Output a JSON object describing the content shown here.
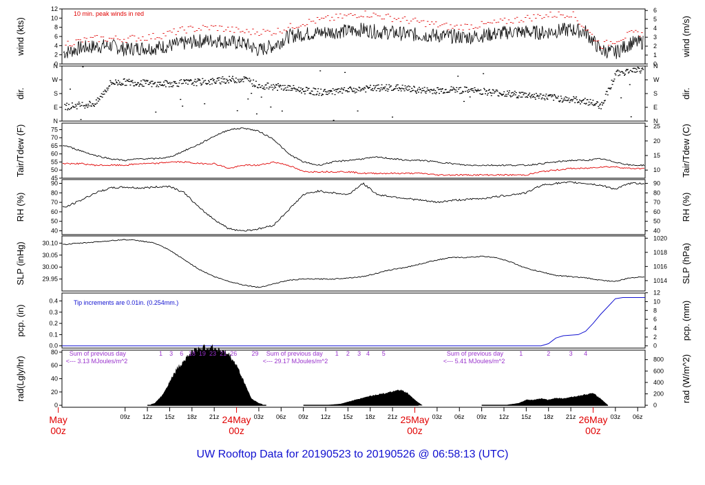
{
  "title": "UW Rooftop Data for 20190523  to  20190526 @ 06:58:13  (UTC)",
  "day_labels": [
    {
      "name": "May",
      "sub": "00z",
      "t": 0
    },
    {
      "name": "24May",
      "sub": "00z",
      "t": 24
    },
    {
      "name": "25May",
      "sub": "00z",
      "t": 48
    },
    {
      "name": "26May",
      "sub": "00z",
      "t": 72
    }
  ],
  "hour_ticks": [
    "09z",
    "12z",
    "15z",
    "18z",
    "21z",
    "03z",
    "06z",
    "09z",
    "12z",
    "15z",
    "18z",
    "21z",
    "03z",
    "06z",
    "09z",
    "12z",
    "15z",
    "18z",
    "21z",
    "03z",
    "06z"
  ],
  "hour_tick_times": [
    9,
    12,
    15,
    18,
    21,
    27,
    30,
    33,
    36,
    39,
    42,
    45,
    51,
    54,
    57,
    60,
    63,
    66,
    69,
    75,
    78
  ],
  "time_range_hours": [
    0.5,
    79.0
  ],
  "panels": [
    {
      "key": "wind",
      "ylabel_left": "wind (kts)",
      "ylabel_right": "wind (m/s)",
      "left_ticks": [
        0,
        2,
        4,
        6,
        8,
        10,
        12
      ],
      "right_ticks": [
        0,
        1,
        2,
        3,
        4,
        5,
        6
      ],
      "ylim": [
        0,
        12
      ],
      "note": "10 min. peak winds in red"
    },
    {
      "key": "dir",
      "ylabel_left": "dir.",
      "ylabel_right": "dir.",
      "left_ticks": [
        "N",
        "E",
        "S",
        "W",
        "N"
      ],
      "right_ticks": [
        "N",
        "E",
        "S",
        "W",
        "N"
      ],
      "ylim": [
        0,
        360
      ]
    },
    {
      "key": "temp",
      "ylabel_left": "Tair/Tdew (F)",
      "ylabel_right": "Tair/Tdew (C)",
      "left_ticks": [
        45,
        50,
        55,
        60,
        65,
        70,
        75
      ],
      "right_ticks": [
        10,
        15,
        20,
        25
      ],
      "ylim": [
        45,
        79
      ]
    },
    {
      "key": "rh",
      "ylabel_left": "RH (%)",
      "ylabel_right": "RH (%)",
      "left_ticks": [
        40,
        50,
        60,
        70,
        80,
        90
      ],
      "right_ticks": [
        40,
        50,
        60,
        70,
        80,
        90
      ],
      "ylim": [
        36,
        94
      ]
    },
    {
      "key": "slp",
      "ylabel_left": "SLP (inHg)",
      "ylabel_right": "SLP (hPa)",
      "left_ticks": [
        "29.95",
        "30.00",
        "30.05",
        "30.10"
      ],
      "right_ticks": [
        1014,
        1016,
        1018,
        1020
      ],
      "ylim": [
        29.9,
        30.13
      ]
    },
    {
      "key": "pcp",
      "ylabel_left": "pcp. (in)",
      "ylabel_right": "pcp. (mm)",
      "left_ticks": [
        "0.0",
        "0.1",
        "0.2",
        "0.3",
        "0.4"
      ],
      "right_ticks": [
        0,
        2,
        4,
        6,
        8,
        10,
        12
      ],
      "ylim": [
        -0.02,
        0.47
      ],
      "note": "Tip increments are 0.01in. (0.254mm.)"
    },
    {
      "key": "rad",
      "ylabel_left": "rad(Lgly/hr)",
      "ylabel_right": "rad (W/m^2)",
      "left_ticks": [
        0,
        20,
        40,
        60,
        80
      ],
      "right_ticks": [
        0,
        200,
        400,
        600,
        800
      ],
      "ylim": [
        -3,
        83
      ]
    }
  ],
  "rad_annotations": [
    {
      "line1": "Sum of previous day",
      "line2": "<--- 3.13 MJoules/m^2",
      "t": 1.5
    },
    {
      "line1": "Sum of previous day",
      "line2": "<--- 29.17 MJoules/m^2",
      "t": 28.0
    },
    {
      "line1": "Sum of previous day",
      "line2": "<--- 5.41 MJoules/m^2",
      "t": 52.3
    }
  ],
  "rad_digits": [
    {
      "d": "1",
      "t": 13.8
    },
    {
      "d": "3",
      "t": 15.2
    },
    {
      "d": "6",
      "t": 16.6
    },
    {
      "d": "18",
      "t": 18.0
    },
    {
      "d": "19",
      "t": 19.4
    },
    {
      "d": "23",
      "t": 20.8
    },
    {
      "d": "21",
      "t": 22.2
    },
    {
      "d": "26",
      "t": 23.6
    },
    {
      "d": "29",
      "t": 26.5
    },
    {
      "d": "1",
      "t": 37.5
    },
    {
      "d": "2",
      "t": 39.0
    },
    {
      "d": "3",
      "t": 40.5
    },
    {
      "d": "4",
      "t": 41.7
    },
    {
      "d": "5",
      "t": 43.8
    },
    {
      "d": "1",
      "t": 62.3
    },
    {
      "d": "2",
      "t": 66.0
    },
    {
      "d": "3",
      "t": 69.0
    },
    {
      "d": "4",
      "t": 71.0
    }
  ],
  "chart_data": {
    "type": "line",
    "x_unit": "hours since 20190523 00z",
    "wind_avg_kts": {
      "x": [
        1,
        3,
        5,
        7,
        9,
        11,
        13,
        15,
        17,
        19,
        21,
        23,
        25,
        27,
        29,
        31,
        33,
        35,
        37,
        39,
        41,
        43,
        45,
        47,
        49,
        51,
        53,
        55,
        57,
        59,
        61,
        63,
        65,
        67,
        69,
        71,
        73,
        75,
        77,
        79
      ],
      "y": [
        2.5,
        3.5,
        3.8,
        4.0,
        3.2,
        3.5,
        3.5,
        4.0,
        4.5,
        5.0,
        5.2,
        4.8,
        4.5,
        3.0,
        4.0,
        6.0,
        6.5,
        6.8,
        7.0,
        7.2,
        7.5,
        7.0,
        6.8,
        6.5,
        6.3,
        6.2,
        6.0,
        5.8,
        6.2,
        6.6,
        7.0,
        7.0,
        6.8,
        7.2,
        7.5,
        7.0,
        3.0,
        2.5,
        4.5,
        4.8
      ]
    },
    "wind_peak_kts": {
      "x": [
        1,
        5,
        9,
        13,
        17,
        21,
        25,
        29,
        33,
        37,
        41,
        45,
        49,
        53,
        57,
        61,
        65,
        69,
        73,
        77,
        79
      ],
      "y": [
        4.5,
        5.5,
        5.5,
        6.0,
        7.5,
        8.0,
        7.0,
        7.0,
        9.0,
        10.0,
        11.0,
        10.0,
        9.0,
        8.0,
        8.5,
        9.5,
        10.5,
        11.0,
        4.0,
        6.5,
        7.0
      ]
    },
    "dir_deg": {
      "x": [
        1,
        3,
        5,
        7,
        9,
        11,
        13,
        15,
        17,
        19,
        21,
        23,
        25,
        27,
        29,
        31,
        33,
        35,
        37,
        39,
        41,
        43,
        45,
        47,
        49,
        51,
        53,
        55,
        57,
        59,
        61,
        63,
        65,
        67,
        69,
        71,
        73,
        75,
        77,
        79
      ],
      "y": [
        95,
        105,
        115,
        250,
        255,
        250,
        240,
        245,
        250,
        255,
        260,
        270,
        275,
        230,
        225,
        215,
        200,
        190,
        190,
        200,
        210,
        215,
        220,
        210,
        200,
        200,
        205,
        200,
        195,
        185,
        175,
        170,
        160,
        150,
        140,
        130,
        100,
        310,
        330,
        335
      ]
    },
    "tair_f": {
      "x": [
        1,
        3,
        5,
        7,
        9,
        11,
        13,
        15,
        17,
        19,
        21,
        23,
        25,
        27,
        29,
        31,
        33,
        35,
        37,
        39,
        41,
        43,
        45,
        47,
        49,
        51,
        53,
        55,
        57,
        59,
        61,
        63,
        65,
        67,
        69,
        71,
        73,
        75,
        77,
        79
      ],
      "y": [
        65,
        62,
        59,
        57,
        56,
        57,
        57,
        58,
        62,
        66,
        71,
        75,
        76,
        74,
        69,
        60,
        55,
        53,
        55,
        56,
        57,
        58,
        57,
        56,
        56,
        55,
        54,
        53,
        53,
        53,
        53,
        53,
        54,
        55,
        56,
        56,
        57,
        55,
        53,
        53
      ]
    },
    "tdew_f": {
      "x": [
        1,
        3,
        5,
        7,
        9,
        11,
        13,
        15,
        17,
        19,
        21,
        23,
        25,
        27,
        29,
        31,
        33,
        35,
        37,
        39,
        41,
        43,
        45,
        47,
        49,
        51,
        53,
        55,
        57,
        59,
        61,
        63,
        65,
        67,
        69,
        71,
        73,
        75,
        77,
        79
      ],
      "y": [
        54,
        54,
        53,
        53,
        53,
        54,
        54,
        55,
        55,
        54,
        54,
        51,
        53,
        53,
        55,
        53,
        49,
        49,
        49,
        49,
        48,
        48,
        48,
        48,
        48,
        47,
        47,
        47,
        47,
        47,
        47,
        47,
        49,
        50,
        51,
        51,
        52,
        52,
        51,
        51
      ]
    },
    "rh_pct": {
      "x": [
        1,
        3,
        5,
        7,
        9,
        11,
        13,
        15,
        17,
        19,
        21,
        23,
        25,
        27,
        29,
        31,
        33,
        35,
        37,
        39,
        41,
        43,
        45,
        47,
        49,
        51,
        53,
        55,
        57,
        59,
        61,
        63,
        65,
        67,
        69,
        71,
        73,
        75,
        77,
        79
      ],
      "y": [
        65,
        72,
        80,
        85,
        86,
        85,
        86,
        87,
        80,
        64,
        52,
        42,
        40,
        42,
        46,
        62,
        78,
        82,
        80,
        78,
        90,
        78,
        76,
        74,
        72,
        70,
        72,
        73,
        74,
        76,
        78,
        80,
        88,
        90,
        91,
        90,
        88,
        84,
        90,
        90
      ]
    },
    "slp_inhg": {
      "x": [
        1,
        3,
        5,
        7,
        9,
        11,
        13,
        15,
        17,
        19,
        21,
        23,
        25,
        27,
        29,
        31,
        33,
        35,
        37,
        39,
        41,
        43,
        45,
        47,
        49,
        51,
        53,
        55,
        57,
        59,
        61,
        63,
        65,
        67,
        69,
        71,
        73,
        75,
        77,
        79
      ],
      "y": [
        30.095,
        30.1,
        30.105,
        30.11,
        30.115,
        30.11,
        30.1,
        30.07,
        30.03,
        29.99,
        29.96,
        29.94,
        29.925,
        29.915,
        29.93,
        29.945,
        29.95,
        29.95,
        29.95,
        29.955,
        29.96,
        29.975,
        29.99,
        30.0,
        30.015,
        30.03,
        30.04,
        30.04,
        30.045,
        30.04,
        30.02,
        29.995,
        29.98,
        29.965,
        29.96,
        29.955,
        29.945,
        29.94,
        29.955,
        29.96
      ]
    },
    "pcp_in": {
      "x": [
        0.5,
        56,
        60,
        62,
        64,
        65,
        66,
        67,
        68,
        70,
        71,
        72,
        73,
        74,
        75,
        76,
        77,
        78,
        79
      ],
      "y": [
        0,
        0,
        0,
        0,
        0,
        0,
        0.02,
        0.07,
        0.09,
        0.1,
        0.13,
        0.2,
        0.28,
        0.35,
        0.42,
        0.43,
        0.43,
        0.43,
        0.43
      ]
    },
    "rad_lgly_hr": {
      "x": [
        1,
        9,
        12,
        13,
        14,
        15,
        16,
        17,
        18,
        19,
        20,
        21,
        22,
        23,
        24,
        25,
        26,
        27,
        28,
        33,
        36,
        38,
        39,
        40,
        41,
        42,
        43,
        44,
        45,
        46,
        47,
        48,
        49,
        57,
        60,
        62,
        63,
        64,
        65,
        66,
        67,
        68,
        69,
        70,
        71,
        72,
        73,
        74
      ],
      "y": [
        0,
        0,
        0,
        3,
        15,
        35,
        55,
        68,
        80,
        85,
        87,
        86,
        82,
        75,
        60,
        35,
        10,
        3,
        0,
        0,
        0,
        2,
        5,
        8,
        11,
        14,
        16,
        18,
        20,
        23,
        18,
        8,
        0,
        0,
        0,
        3,
        8,
        8,
        10,
        8,
        11,
        10,
        12,
        14,
        16,
        18,
        10,
        0
      ],
      "sums_mjoules_m2": [
        3.13,
        29.17,
        5.41
      ]
    }
  }
}
